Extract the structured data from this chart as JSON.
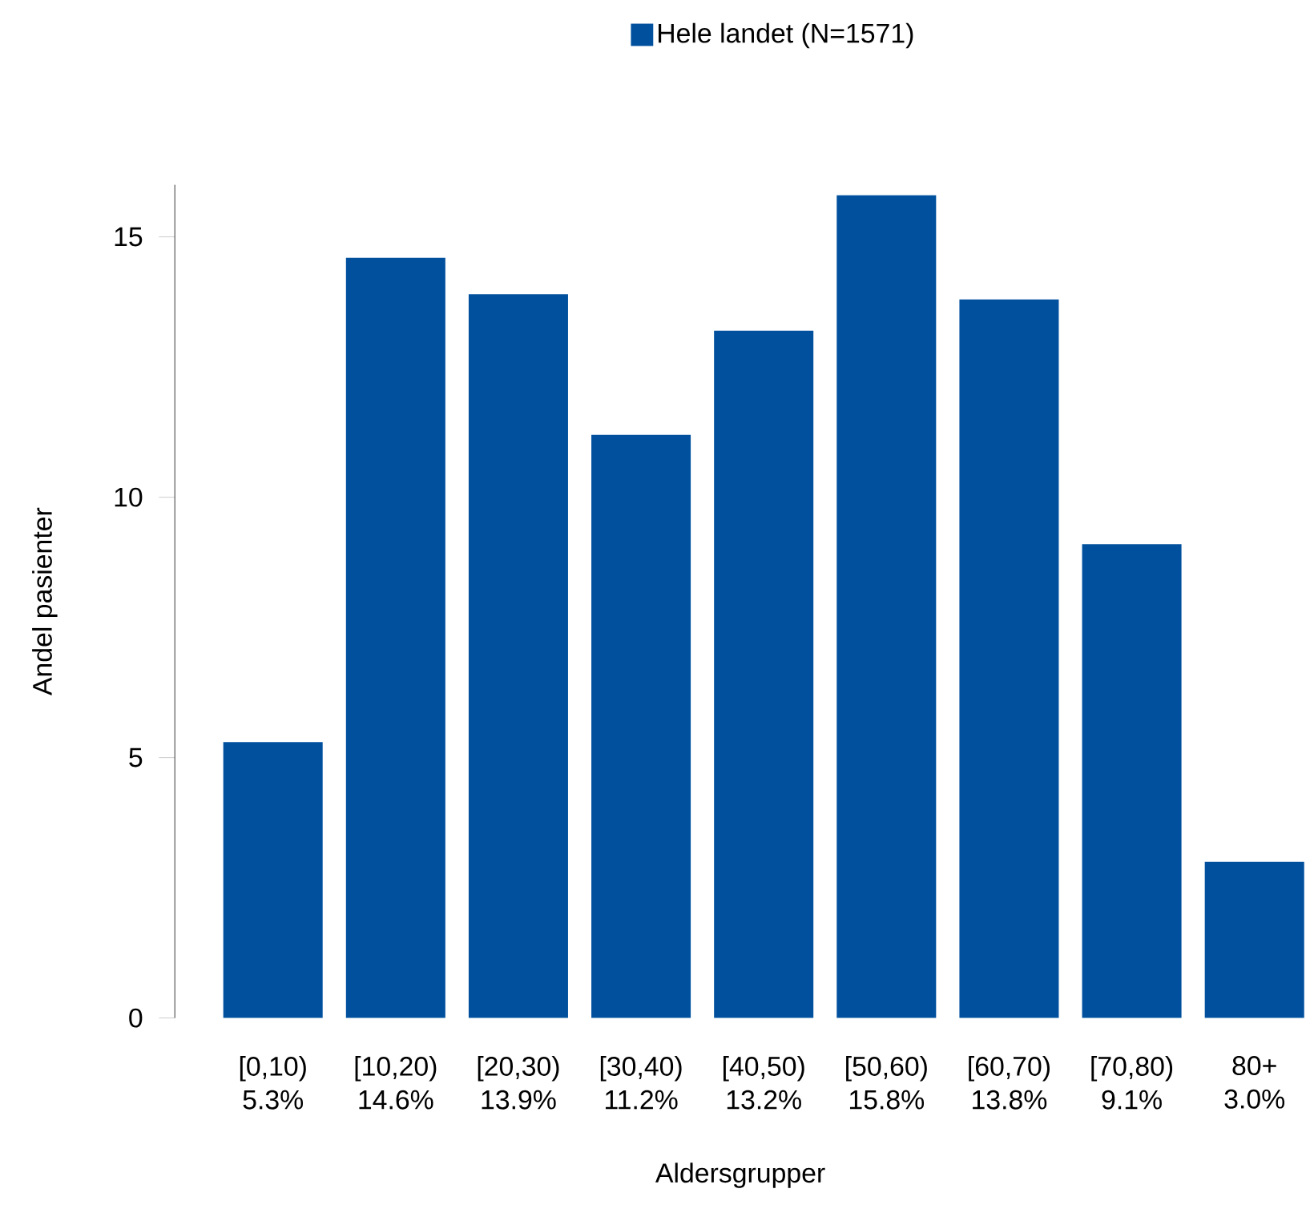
{
  "chart_data": {
    "type": "bar",
    "xlabel": "Aldersgrupper",
    "ylabel": "Andel pasienter",
    "categories": [
      "[0,10)",
      "[10,20)",
      "[20,30)",
      "[30,40)",
      "[40,50)",
      "[50,60)",
      "[60,70)",
      "[70,80)",
      "80+"
    ],
    "series": [
      {
        "name": "Hele landet (N=1571)",
        "color": "#00509e",
        "values": [
          5.3,
          14.6,
          13.9,
          11.2,
          13.2,
          15.8,
          13.8,
          9.1,
          3.0
        ],
        "value_labels": [
          "5.3%",
          "14.6%",
          "13.9%",
          "11.2%",
          "13.2%",
          "15.8%",
          "13.8%",
          "9.1%",
          "3.0%"
        ]
      }
    ],
    "ylim": [
      0,
      16
    ],
    "yticks": [
      0,
      5,
      10,
      15
    ],
    "legend": "top"
  }
}
